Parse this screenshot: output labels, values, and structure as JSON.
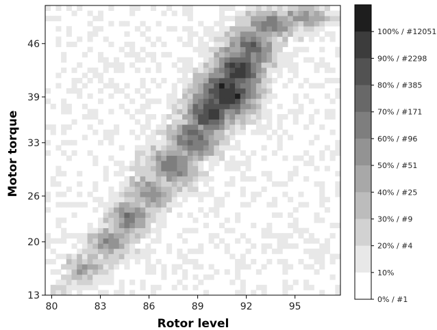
{
  "chart_data": {
    "type": "heatmap",
    "title": "",
    "xlabel": "Rotor level",
    "ylabel": "Motor torque",
    "xlim": [
      79.6,
      97.8
    ],
    "ylim": [
      13,
      51
    ],
    "x_ticks": [
      "80",
      "83",
      "86",
      "89",
      "92",
      "95"
    ],
    "y_ticks": [
      "13",
      "20",
      "26",
      "33",
      "39",
      "46"
    ],
    "grid": false,
    "colorbar": {
      "labels": [
        "0% / #1",
        "10%",
        "20% / #4",
        "30% / #9",
        "40% / #25",
        "50% / #51",
        "60% / #96",
        "70% / #171",
        "80% / #385",
        "90% / #2298",
        "100% / #12051"
      ],
      "colors": [
        "#ffffff",
        "#e8e8e8",
        "#d2d2d2",
        "#bcbcbc",
        "#a8a8a8",
        "#939393",
        "#7e7e7e",
        "#686868",
        "#525252",
        "#3c3c3c",
        "#1e1e1e"
      ]
    },
    "density_ridge": [
      {
        "x": 80.5,
        "y": 14.0,
        "level": 2,
        "sx": 0.6,
        "sy": 1.0
      },
      {
        "x": 82.0,
        "y": 16.5,
        "level": 4,
        "sx": 0.9,
        "sy": 1.4
      },
      {
        "x": 83.5,
        "y": 20.0,
        "level": 5,
        "sx": 0.9,
        "sy": 1.6
      },
      {
        "x": 84.8,
        "y": 23.0,
        "level": 6,
        "sx": 0.9,
        "sy": 1.6
      },
      {
        "x": 86.0,
        "y": 26.5,
        "level": 5,
        "sx": 1.0,
        "sy": 1.8
      },
      {
        "x": 87.5,
        "y": 30.0,
        "level": 6,
        "sx": 1.1,
        "sy": 2.0
      },
      {
        "x": 88.8,
        "y": 33.5,
        "level": 7,
        "sx": 1.1,
        "sy": 2.0
      },
      {
        "x": 89.7,
        "y": 37.0,
        "level": 9,
        "sx": 1.0,
        "sy": 2.2
      },
      {
        "x": 90.8,
        "y": 39.5,
        "level": 10,
        "sx": 1.2,
        "sy": 2.4
      },
      {
        "x": 91.5,
        "y": 42.5,
        "level": 9,
        "sx": 1.1,
        "sy": 2.2
      },
      {
        "x": 92.3,
        "y": 45.5,
        "level": 7,
        "sx": 1.1,
        "sy": 2.0
      },
      {
        "x": 93.5,
        "y": 48.5,
        "level": 6,
        "sx": 1.2,
        "sy": 1.4
      },
      {
        "x": 95.5,
        "y": 49.5,
        "level": 5,
        "sx": 1.3,
        "sy": 1.0
      }
    ]
  }
}
